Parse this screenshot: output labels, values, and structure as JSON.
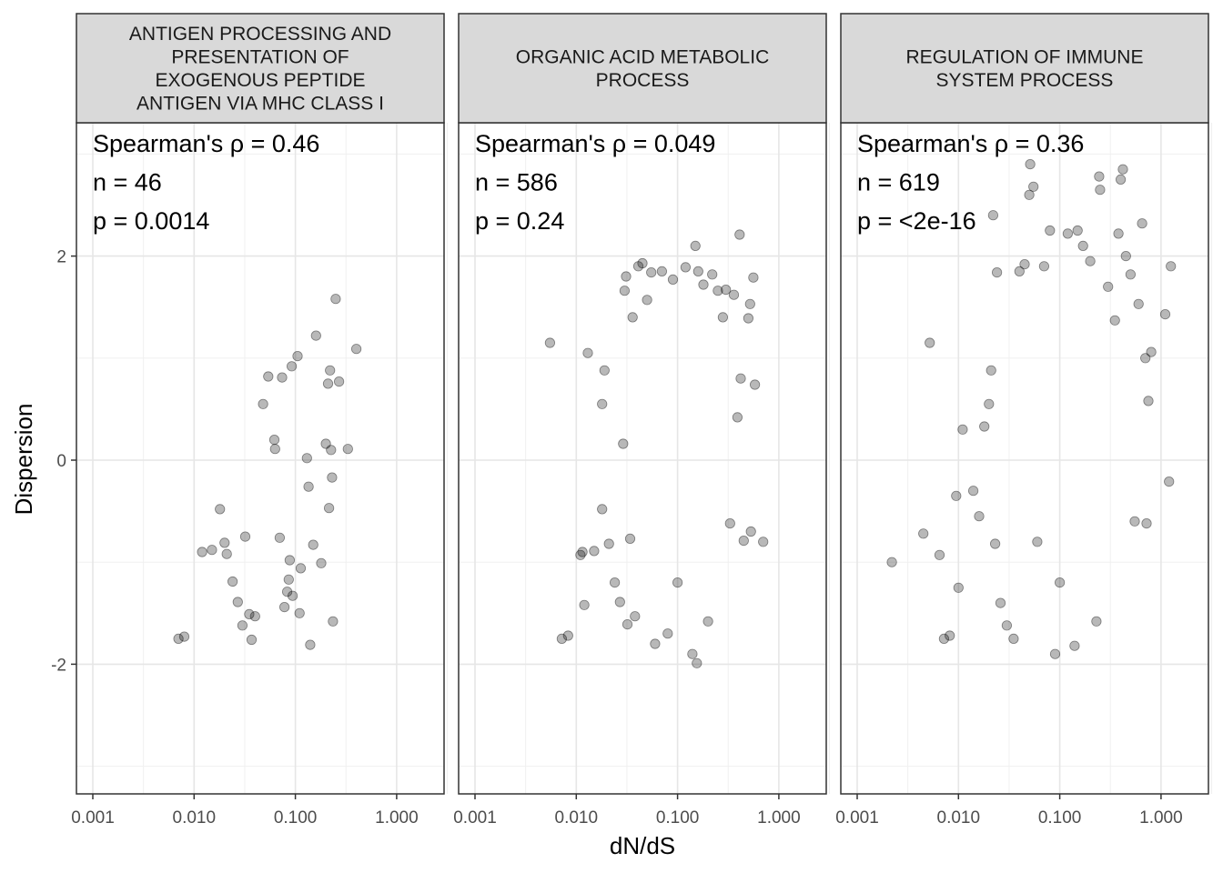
{
  "chart_data": {
    "type": "scatter",
    "xlabel": "dN/dS",
    "ylabel": "Dispersion",
    "x_scale": "log10",
    "xlim": [
      0.001,
      1.0
    ],
    "ylim": [
      -2.9,
      2.9
    ],
    "x_ticks": [
      0.001,
      0.01,
      0.1,
      1.0
    ],
    "x_tick_labels": [
      "0.001",
      "0.010",
      "0.100",
      "1.000"
    ],
    "y_ticks": [
      -2,
      0,
      2
    ],
    "y_tick_labels": [
      "-2",
      "0",
      "2"
    ],
    "grid": true,
    "point_color": "#000000",
    "point_opacity": 0.28,
    "panels": [
      {
        "title_lines": [
          "ANTIGEN PROCESSING AND",
          "PRESENTATION OF",
          "EXOGENOUS PEPTIDE",
          "ANTIGEN VIA MHC CLASS I"
        ],
        "annotations": [
          "Spearman's ρ = 0.46",
          "n = 46",
          "p = 0.0014"
        ],
        "rho": 0.46,
        "n": 46,
        "p": "0.0014",
        "points": [
          [
            0.007,
            -1.75
          ],
          [
            0.008,
            -1.73
          ],
          [
            0.012,
            -0.9
          ],
          [
            0.015,
            -0.88
          ],
          [
            0.018,
            -0.48
          ],
          [
            0.02,
            -0.81
          ],
          [
            0.021,
            -0.92
          ],
          [
            0.024,
            -1.19
          ],
          [
            0.027,
            -1.39
          ],
          [
            0.03,
            -1.62
          ],
          [
            0.032,
            -0.75
          ],
          [
            0.035,
            -1.51
          ],
          [
            0.037,
            -1.76
          ],
          [
            0.04,
            -1.53
          ],
          [
            0.048,
            0.55
          ],
          [
            0.054,
            0.82
          ],
          [
            0.062,
            0.2
          ],
          [
            0.063,
            0.11
          ],
          [
            0.07,
            -0.76
          ],
          [
            0.074,
            0.81
          ],
          [
            0.078,
            -1.44
          ],
          [
            0.083,
            -1.29
          ],
          [
            0.086,
            -1.17
          ],
          [
            0.088,
            -0.98
          ],
          [
            0.092,
            0.92
          ],
          [
            0.094,
            -1.33
          ],
          [
            0.105,
            1.02
          ],
          [
            0.11,
            -1.5
          ],
          [
            0.113,
            -1.06
          ],
          [
            0.13,
            0.02
          ],
          [
            0.135,
            -0.26
          ],
          [
            0.14,
            -1.81
          ],
          [
            0.15,
            -0.83
          ],
          [
            0.16,
            1.22
          ],
          [
            0.18,
            -1.01
          ],
          [
            0.2,
            0.16
          ],
          [
            0.21,
            0.75
          ],
          [
            0.215,
            -0.47
          ],
          [
            0.22,
            0.88
          ],
          [
            0.225,
            0.1
          ],
          [
            0.23,
            -0.17
          ],
          [
            0.235,
            -1.58
          ],
          [
            0.25,
            1.58
          ],
          [
            0.27,
            0.77
          ],
          [
            0.33,
            0.11
          ],
          [
            0.4,
            1.09
          ]
        ]
      },
      {
        "title_lines": [
          "ORGANIC ACID METABOLIC",
          "PROCESS"
        ],
        "annotations": [
          "Spearman's ρ = 0.049",
          "n = 586",
          "p = 0.24"
        ],
        "rho": 0.049,
        "n": 586,
        "p": "0.24",
        "points": [
          [
            0.0055,
            1.15
          ],
          [
            0.0072,
            -1.75
          ],
          [
            0.0083,
            -1.72
          ],
          [
            0.011,
            -0.93
          ],
          [
            0.0115,
            -0.9
          ],
          [
            0.012,
            -1.42
          ],
          [
            0.013,
            1.05
          ],
          [
            0.015,
            -0.89
          ],
          [
            0.018,
            0.55
          ],
          [
            0.018,
            -0.48
          ],
          [
            0.019,
            0.88
          ],
          [
            0.021,
            -0.82
          ],
          [
            0.024,
            -1.2
          ],
          [
            0.027,
            -1.39
          ],
          [
            0.029,
            0.16
          ],
          [
            0.03,
            1.66
          ],
          [
            0.031,
            1.8
          ],
          [
            0.032,
            -1.61
          ],
          [
            0.034,
            -0.77
          ],
          [
            0.036,
            1.4
          ],
          [
            0.038,
            -1.53
          ],
          [
            0.041,
            1.9
          ],
          [
            0.045,
            1.93
          ],
          [
            0.05,
            1.57
          ],
          [
            0.055,
            1.84
          ],
          [
            0.06,
            -1.8
          ],
          [
            0.07,
            1.85
          ],
          [
            0.08,
            -1.7
          ],
          [
            0.09,
            1.77
          ],
          [
            0.1,
            -1.2
          ],
          [
            0.12,
            1.89
          ],
          [
            0.14,
            -1.9
          ],
          [
            0.15,
            2.1
          ],
          [
            0.155,
            -1.99
          ],
          [
            0.16,
            1.85
          ],
          [
            0.18,
            1.72
          ],
          [
            0.2,
            -1.58
          ],
          [
            0.22,
            1.82
          ],
          [
            0.25,
            1.66
          ],
          [
            0.28,
            1.4
          ],
          [
            0.3,
            1.67
          ],
          [
            0.33,
            -0.62
          ],
          [
            0.36,
            1.62
          ],
          [
            0.39,
            0.42
          ],
          [
            0.41,
            2.21
          ],
          [
            0.42,
            0.8
          ],
          [
            0.45,
            -0.79
          ],
          [
            0.5,
            1.39
          ],
          [
            0.52,
            1.53
          ],
          [
            0.53,
            -0.7
          ],
          [
            0.56,
            1.79
          ],
          [
            0.58,
            0.74
          ],
          [
            0.7,
            -0.8
          ]
        ]
      },
      {
        "title_lines": [
          "REGULATION OF IMMUNE",
          "SYSTEM PROCESS"
        ],
        "annotations": [
          "Spearman's ρ = 0.36",
          "n = 619",
          "p = <2e-16"
        ],
        "rho": 0.36,
        "n": 619,
        "p": "<2e-16",
        "points": [
          [
            0.0022,
            -1.0
          ],
          [
            0.0045,
            -0.72
          ],
          [
            0.0052,
            1.15
          ],
          [
            0.0065,
            -0.93
          ],
          [
            0.0072,
            -1.75
          ],
          [
            0.0082,
            -1.72
          ],
          [
            0.0095,
            -0.35
          ],
          [
            0.01,
            -1.25
          ],
          [
            0.011,
            0.3
          ],
          [
            0.014,
            -0.3
          ],
          [
            0.016,
            -0.55
          ],
          [
            0.018,
            0.33
          ],
          [
            0.02,
            0.55
          ],
          [
            0.021,
            0.88
          ],
          [
            0.022,
            2.4
          ],
          [
            0.023,
            -0.82
          ],
          [
            0.024,
            1.84
          ],
          [
            0.026,
            -1.4
          ],
          [
            0.03,
            -1.62
          ],
          [
            0.035,
            -1.75
          ],
          [
            0.04,
            1.85
          ],
          [
            0.045,
            1.92
          ],
          [
            0.05,
            2.6
          ],
          [
            0.051,
            2.9
          ],
          [
            0.055,
            2.68
          ],
          [
            0.06,
            -0.8
          ],
          [
            0.07,
            1.9
          ],
          [
            0.08,
            2.25
          ],
          [
            0.09,
            -1.9
          ],
          [
            0.1,
            -1.2
          ],
          [
            0.12,
            2.22
          ],
          [
            0.14,
            -1.82
          ],
          [
            0.15,
            2.25
          ],
          [
            0.17,
            2.1
          ],
          [
            0.2,
            1.95
          ],
          [
            0.23,
            -1.58
          ],
          [
            0.245,
            2.78
          ],
          [
            0.25,
            2.65
          ],
          [
            0.3,
            1.7
          ],
          [
            0.35,
            1.37
          ],
          [
            0.38,
            2.22
          ],
          [
            0.4,
            2.75
          ],
          [
            0.42,
            2.85
          ],
          [
            0.45,
            2.0
          ],
          [
            0.5,
            1.82
          ],
          [
            0.55,
            -0.6
          ],
          [
            0.6,
            1.53
          ],
          [
            0.65,
            2.32
          ],
          [
            0.7,
            1.0
          ],
          [
            0.72,
            -0.62
          ],
          [
            0.75,
            0.58
          ],
          [
            0.8,
            1.06
          ],
          [
            1.1,
            1.43
          ],
          [
            1.2,
            -0.21
          ],
          [
            1.25,
            1.9
          ]
        ]
      }
    ]
  }
}
